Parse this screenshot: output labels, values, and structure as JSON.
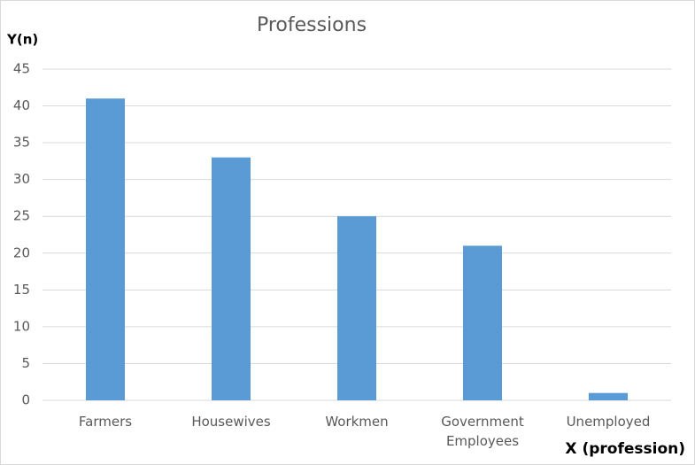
{
  "chart_data": {
    "type": "bar",
    "title": "Professions",
    "y_label": "Y(n)",
    "x_label": "X (profession)",
    "categories": [
      "Farmers",
      "Housewives",
      "Workmen",
      "Government Employees",
      "Unemployed"
    ],
    "values": [
      41,
      33,
      25,
      21,
      1
    ],
    "color": "#5b9bd5",
    "ylim": [
      0,
      45
    ],
    "yticks": [
      0,
      5,
      10,
      15,
      20,
      25,
      30,
      35,
      40,
      45
    ],
    "grid": true
  }
}
